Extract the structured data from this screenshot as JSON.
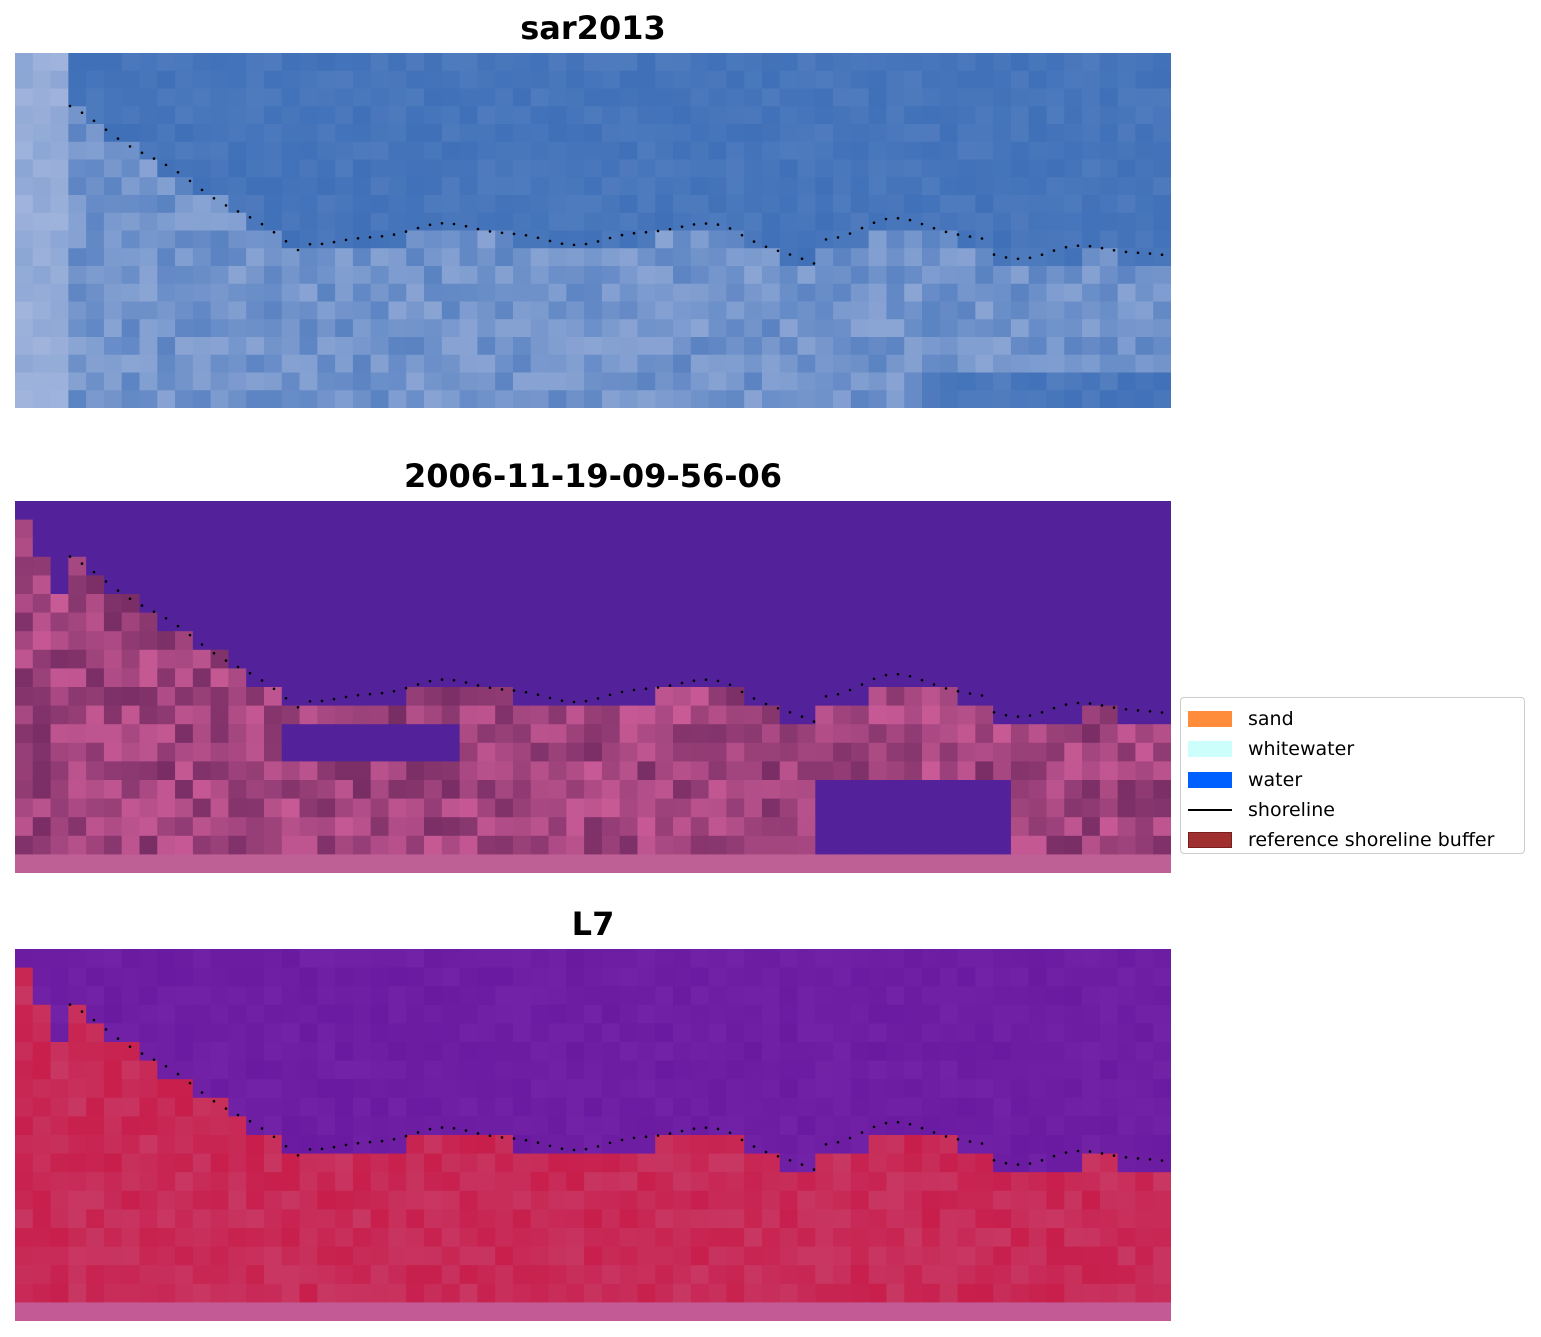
{
  "panels": [
    {
      "title": "sar2013",
      "palette": "rgb"
    },
    {
      "title": "2006-11-19-09-56-06",
      "palette": "classified"
    },
    {
      "title": "L7",
      "palette": "falsecolor"
    }
  ],
  "legend": {
    "items": [
      {
        "label": "sand",
        "color": "#ff8c3a",
        "kind": "patch"
      },
      {
        "label": "whitewater",
        "color": "#ccfffc",
        "kind": "patch"
      },
      {
        "label": "water",
        "color": "#0060ff",
        "kind": "patch"
      },
      {
        "label": "shoreline",
        "color": "#000000",
        "kind": "line"
      },
      {
        "label": "reference shoreline buffer",
        "color": "#a03030",
        "kind": "patch"
      }
    ]
  },
  "colors": {
    "water_class": "#53229a",
    "rgb_water": "#3468b4",
    "rgb_surf": "#a0b4dc",
    "false_water": "#6a1aa0",
    "false_land": "#c81e4c"
  }
}
